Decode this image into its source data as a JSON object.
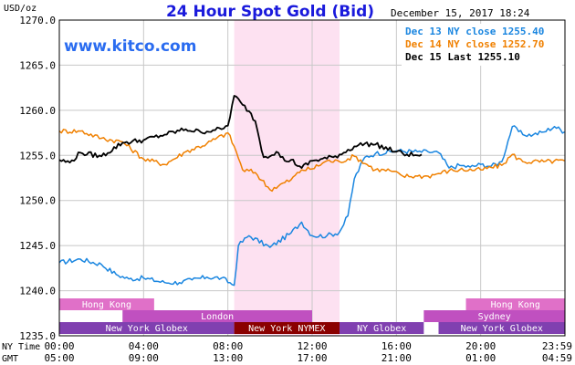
{
  "header": {
    "unit": "USD/oz",
    "title": "24 Hour Spot Gold (Bid)",
    "date": "December 15, 2017 18:24",
    "watermark": "www.kitco.com"
  },
  "colors": {
    "dec13": "#1a86e0",
    "dec14": "#f08000",
    "dec15": "#000000",
    "title": "#1a1adc",
    "watermark": "#2a6cf0",
    "session_highlight": "#fde1f1",
    "hk_bar": "#e070c8",
    "london_bar": "#c050c0",
    "ny_bar": "#8040b0",
    "nymex_bar": "#8a0000",
    "sydney_bar": "#c050c0"
  },
  "chart_data": {
    "type": "line",
    "title": "24 Hour Spot Gold (Bid)",
    "ylabel": "USD/oz",
    "ylim": [
      1235.0,
      1270.0
    ],
    "yticks": [
      "1235.0",
      "1240.0",
      "1245.0",
      "1250.0",
      "1255.0",
      "1260.0",
      "1265.0",
      "1270.0"
    ],
    "xlim": [
      0,
      24
    ],
    "x_axis_rows": [
      {
        "label": "NY Time",
        "ticks": [
          "00:00",
          "04:00",
          "08:00",
          "12:00",
          "16:00",
          "20:00",
          "23:59"
        ]
      },
      {
        "label": "GMT",
        "ticks": [
          "05:00",
          "09:00",
          "13:00",
          "17:00",
          "21:00",
          "01:00",
          "04:59"
        ]
      }
    ],
    "grid": true,
    "highlight_hours": [
      8.3,
      13.3
    ],
    "legend_position": "top-right",
    "series": [
      {
        "name": "Dec 13 NY close 1255.40",
        "color": "#1a86e0",
        "x": [
          0,
          1,
          2,
          2.7,
          3.3,
          4,
          5,
          5.7,
          6.3,
          7,
          7.7,
          8.3,
          8.5,
          9,
          10,
          11,
          11.5,
          12,
          12.7,
          13.3,
          13.7,
          14,
          14.5,
          15,
          16,
          17,
          17.5,
          18,
          18.5,
          19,
          19.5,
          20,
          20.5,
          21,
          21.5,
          22,
          22.5,
          23,
          23.5,
          23.98
        ],
        "y": [
          1243.1,
          1243.5,
          1242.9,
          1241.8,
          1241.3,
          1241.4,
          1240.9,
          1240.9,
          1241.2,
          1241.5,
          1241.4,
          1240.6,
          1245.0,
          1246.1,
          1244.8,
          1246.4,
          1247.6,
          1246.1,
          1246.1,
          1246.5,
          1248.3,
          1252.4,
          1254.8,
          1255.2,
          1255.5,
          1255.4,
          1255.4,
          1255.3,
          1253.6,
          1253.9,
          1253.7,
          1254.0,
          1253.8,
          1254.3,
          1258.2,
          1257.3,
          1257.3,
          1257.6,
          1258.2,
          1257.6
        ]
      },
      {
        "name": "Dec 14 NY close 1252.70",
        "color": "#f08000",
        "x": [
          0,
          1,
          2,
          3,
          4,
          5,
          6,
          7,
          8,
          8.3,
          8.7,
          9.3,
          10,
          11,
          11.5,
          12,
          12.7,
          13.3,
          14,
          15,
          15.7,
          16.3,
          17,
          17.5,
          18,
          18.5,
          19,
          20,
          21,
          21.5,
          22,
          23,
          23.98
        ],
        "y": [
          1257.7,
          1257.7,
          1256.9,
          1256.5,
          1254.6,
          1254.0,
          1255.4,
          1256.3,
          1257.5,
          1256.0,
          1253.4,
          1253.1,
          1251.2,
          1252.3,
          1253.4,
          1253.5,
          1254.4,
          1254.3,
          1254.9,
          1253.4,
          1253.3,
          1252.7,
          1252.7,
          1252.7,
          1253.0,
          1253.3,
          1253.4,
          1253.4,
          1253.9,
          1255.1,
          1254.3,
          1254.3,
          1254.4
        ]
      },
      {
        "name": "Dec 15 Last 1255.10",
        "color": "#000000",
        "x": [
          0,
          0.5,
          1,
          2,
          3,
          4,
          5,
          6,
          6.7,
          7.3,
          7.7,
          8,
          8.3,
          8.7,
          9,
          9.3,
          9.7,
          10.3,
          10.7,
          11,
          11.5,
          12,
          13,
          13.5,
          14,
          14.5,
          15,
          16,
          16.5,
          17,
          17.2
        ],
        "y": [
          1254.5,
          1254.2,
          1255.3,
          1254.9,
          1256.4,
          1256.7,
          1257.3,
          1257.9,
          1257.6,
          1257.8,
          1257.9,
          1258.3,
          1261.6,
          1260.6,
          1259.9,
          1258.8,
          1254.8,
          1255.4,
          1254.4,
          1254.5,
          1253.6,
          1254.4,
          1254.8,
          1255.3,
          1256.0,
          1256.3,
          1256.2,
          1255.4,
          1255.1,
          1255.0,
          1255.1
        ]
      }
    ],
    "sessions": [
      {
        "label": "Hong Kong",
        "row": 0,
        "start": 0,
        "end": 4.5,
        "color": "#e070c8"
      },
      {
        "label": "Hong Kong",
        "row": 0,
        "start": 19.3,
        "end": 24,
        "color": "#e070c8"
      },
      {
        "label": "London",
        "row": 1,
        "start": 3,
        "end": 12,
        "color": "#c050c0"
      },
      {
        "label": "Sydney",
        "row": 1,
        "start": 17.3,
        "end": 24,
        "color": "#c050c0"
      },
      {
        "label": "New York Globex",
        "row": 2,
        "start": 0,
        "end": 8.3,
        "color": "#8040b0"
      },
      {
        "label": "New York NYMEX",
        "row": 2,
        "start": 8.3,
        "end": 13.3,
        "color": "#8a0000"
      },
      {
        "label": "NY Globex",
        "row": 2,
        "start": 13.3,
        "end": 17.3,
        "color": "#8040b0"
      },
      {
        "label": "New York Globex",
        "row": 2,
        "start": 18,
        "end": 24,
        "color": "#8040b0"
      }
    ]
  }
}
